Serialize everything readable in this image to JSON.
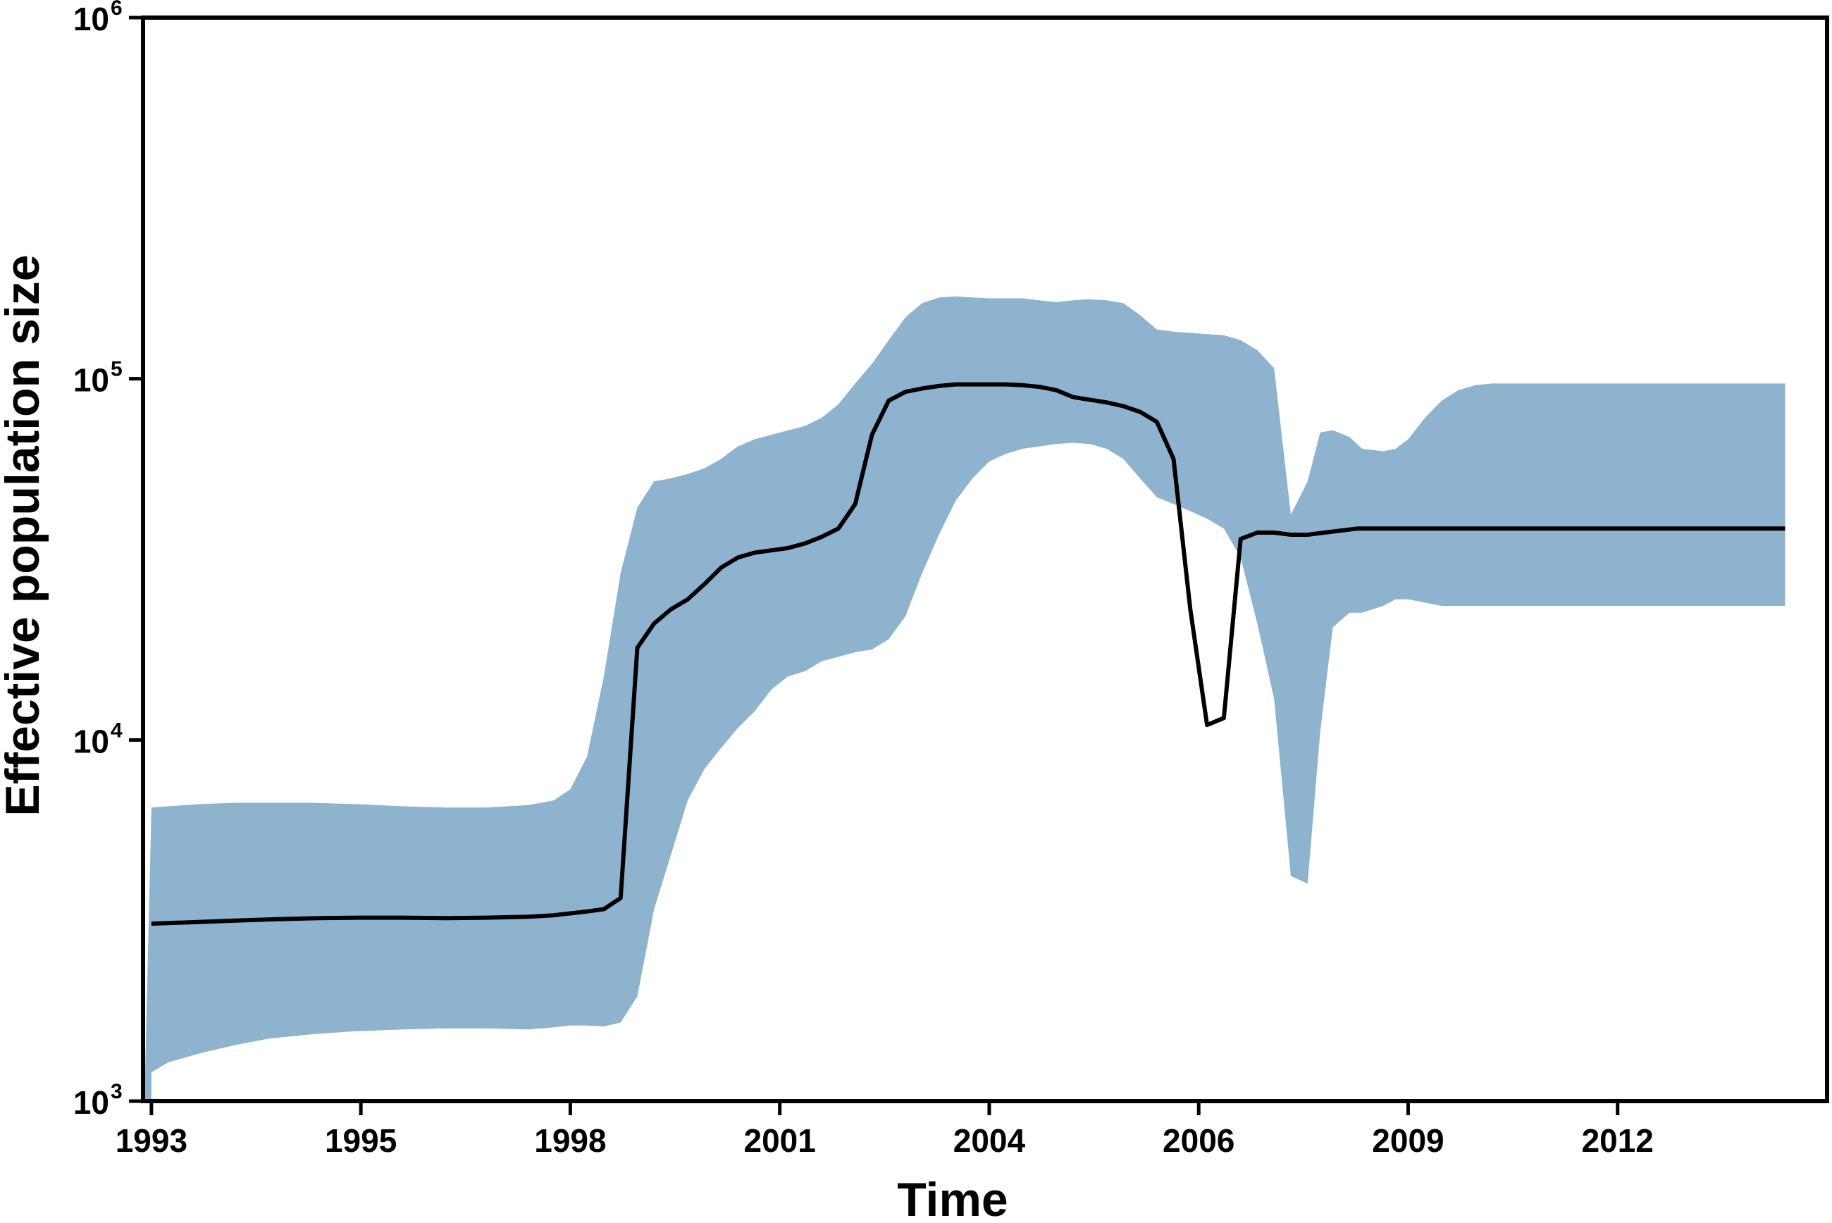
{
  "chart_data": {
    "type": "area",
    "title": "",
    "xlabel": "Time",
    "ylabel": "Effective population size",
    "yscale": "log",
    "ylim": [
      1000,
      1000000
    ],
    "xlim": [
      1992.9,
      2013.0
    ],
    "grid": false,
    "x_ticks": [
      {
        "value": 1993.0,
        "label": "1993"
      },
      {
        "value": 1995.5,
        "label": "1995"
      },
      {
        "value": 1998.0,
        "label": "1998"
      },
      {
        "value": 2000.5,
        "label": "2001"
      },
      {
        "value": 2003.0,
        "label": "2004"
      },
      {
        "value": 2005.5,
        "label": "2006"
      },
      {
        "value": 2008.0,
        "label": "2009"
      },
      {
        "value": 2010.5,
        "label": "2012"
      }
    ],
    "y_ticks": [
      {
        "value": 1000,
        "base": "10",
        "exp": "3"
      },
      {
        "value": 10000,
        "base": "10",
        "exp": "4"
      },
      {
        "value": 100000,
        "base": "10",
        "exp": "5"
      },
      {
        "value": 1000000,
        "base": "10",
        "exp": "6"
      }
    ],
    "series": [
      {
        "type": "band",
        "color": "#8db3cf",
        "x": [
          1993.0,
          1993.2,
          1993.6,
          1994.0,
          1994.4,
          1994.9,
          1995.4,
          1996.0,
          1996.5,
          1997.0,
          1997.5,
          1997.8,
          1998.0,
          1998.2,
          1998.4,
          1998.6,
          1998.8,
          1999.0,
          1999.2,
          1999.4,
          1999.6,
          1999.8,
          2000.0,
          2000.2,
          2000.4,
          2000.6,
          2000.8,
          2001.0,
          2001.2,
          2001.4,
          2001.6,
          2001.8,
          2002.0,
          2002.2,
          2002.4,
          2002.6,
          2002.8,
          2003.0,
          2003.2,
          2003.4,
          2003.6,
          2003.8,
          2004.0,
          2004.2,
          2004.4,
          2004.6,
          2004.8,
          2005.0,
          2005.2,
          2005.4,
          2005.6,
          2005.8,
          2006.0,
          2006.2,
          2006.4,
          2006.6,
          2006.8,
          2006.95,
          2007.1,
          2007.3,
          2007.45,
          2007.7,
          2007.85,
          2008.0,
          2008.2,
          2008.4,
          2008.6,
          2008.8,
          2009.0,
          2009.2,
          2009.5,
          2009.8,
          2010.2,
          2010.6,
          2011.0,
          2011.5,
          2012.0,
          2012.5
        ],
        "upper": [
          6500,
          6550,
          6650,
          6700,
          6700,
          6700,
          6650,
          6550,
          6500,
          6500,
          6600,
          6800,
          7300,
          9000,
          15000,
          29000,
          44000,
          52000,
          53000,
          54500,
          56500,
          60000,
          65000,
          68000,
          70000,
          72000,
          74000,
          78000,
          85000,
          97000,
          110000,
          128000,
          148000,
          162000,
          168000,
          169000,
          168000,
          167000,
          167000,
          167000,
          165000,
          163000,
          165000,
          166000,
          165000,
          162000,
          150000,
          137000,
          135000,
          134000,
          133000,
          132000,
          128000,
          120000,
          107000,
          42000,
          52000,
          71000,
          72000,
          69000,
          64000,
          63000,
          64000,
          68000,
          78000,
          87000,
          93000,
          96000,
          97000,
          97000,
          97000,
          97000,
          97000,
          97000,
          97000,
          97000,
          97000,
          97000
        ],
        "lower": [
          1200,
          1280,
          1360,
          1430,
          1490,
          1530,
          1560,
          1580,
          1590,
          1590,
          1580,
          1600,
          1620,
          1620,
          1610,
          1650,
          1950,
          3400,
          4800,
          6800,
          8300,
          9500,
          10800,
          12000,
          13800,
          15000,
          15500,
          16500,
          17000,
          17500,
          17800,
          19000,
          22000,
          29000,
          37000,
          46000,
          53000,
          59000,
          62000,
          64000,
          65000,
          66000,
          66500,
          66000,
          64000,
          60000,
          53000,
          47000,
          45000,
          43000,
          41000,
          38500,
          32000,
          21000,
          13000,
          4200,
          4000,
          10500,
          20500,
          22500,
          22500,
          23500,
          24500,
          24500,
          24000,
          23500,
          23500,
          23500,
          23500,
          23500,
          23500,
          23500,
          23500,
          23500,
          23500,
          23500,
          23500,
          23500
        ]
      },
      {
        "type": "line",
        "color": "#000000",
        "x": [
          1993.0,
          1993.5,
          1994.0,
          1994.5,
          1995.0,
          1995.5,
          1996.0,
          1996.5,
          1997.0,
          1997.5,
          1997.8,
          1998.0,
          1998.2,
          1998.4,
          1998.6,
          1998.8,
          1999.0,
          1999.2,
          1999.4,
          1999.6,
          1999.8,
          2000.0,
          2000.2,
          2000.4,
          2000.6,
          2000.8,
          2001.0,
          2001.2,
          2001.4,
          2001.6,
          2001.8,
          2002.0,
          2002.2,
          2002.4,
          2002.6,
          2002.8,
          2003.0,
          2003.2,
          2003.4,
          2003.6,
          2003.8,
          2004.0,
          2004.2,
          2004.4,
          2004.6,
          2004.8,
          2005.0,
          2005.2,
          2005.4,
          2005.6,
          2005.8,
          2006.0,
          2006.2,
          2006.4,
          2006.6,
          2006.8,
          2007.0,
          2007.2,
          2007.4,
          2007.6,
          2007.8,
          2008.0,
          2008.3,
          2008.6,
          2009.0,
          2009.5,
          2010.0,
          2010.5,
          2011.0,
          2011.5,
          2012.0,
          2012.5
        ],
        "y": [
          3100,
          3130,
          3160,
          3190,
          3210,
          3220,
          3220,
          3210,
          3220,
          3240,
          3270,
          3310,
          3350,
          3400,
          3650,
          18000,
          21000,
          23000,
          24500,
          27000,
          30000,
          32000,
          33000,
          33500,
          34000,
          35000,
          36500,
          38500,
          45000,
          70000,
          87000,
          92000,
          94000,
          95500,
          96500,
          96500,
          96500,
          96500,
          96000,
          95000,
          93000,
          89000,
          87500,
          86000,
          84000,
          81000,
          76000,
          60000,
          23000,
          11000,
          11500,
          36000,
          37500,
          37500,
          37000,
          37000,
          37500,
          38000,
          38500,
          38500,
          38500,
          38500,
          38500,
          38500,
          38500,
          38500,
          38500,
          38500,
          38500,
          38500,
          38500,
          38500
        ]
      }
    ]
  }
}
